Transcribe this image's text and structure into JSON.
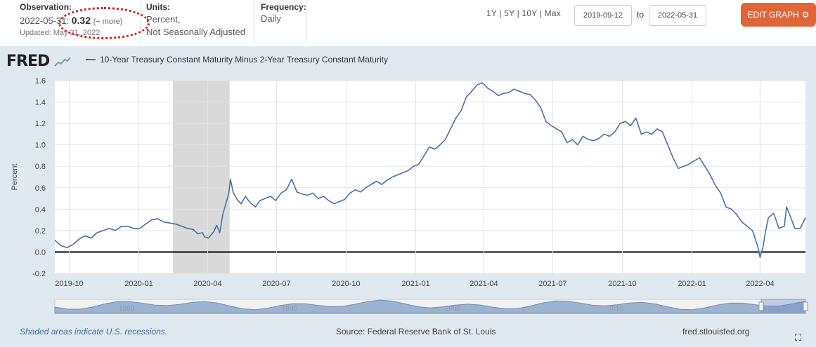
{
  "observation": {
    "header": "Observation:",
    "date": "2022-05-31:",
    "value": "0.32",
    "more": "(+ more)",
    "updated": "Updated: May 31, 2022"
  },
  "units": {
    "header": "Units:",
    "line1": "Percent,",
    "line2": "Not Seasonally Adjusted"
  },
  "frequency": {
    "header": "Frequency:",
    "value": "Daily"
  },
  "ranges": [
    "1Y",
    "5Y",
    "10Y",
    "Max"
  ],
  "date_start": "2019-09-12",
  "date_end": "2022-05-31",
  "to_label": "to",
  "edit_button": "EDIT GRAPH",
  "logo": "FRED",
  "footer": {
    "shaded_note": "Shaded areas indicate U.S. recessions.",
    "source": "Source: Federal Reserve Bank of St. Louis",
    "site": "fred.stlouisfed.org"
  },
  "colors": {
    "line": "#4572a7",
    "recession": "#d9d9d9",
    "plot_bg": "#ffffff",
    "outer_bg": "#e1e9f0",
    "button": "#e0663a",
    "annotation": "#e01818"
  },
  "navigator_labels": [
    "1980",
    "1990",
    "2000",
    "2010",
    "2020"
  ],
  "chart_data": {
    "type": "line",
    "title": "",
    "ylabel": "Percent",
    "ylim": [
      -0.2,
      1.6
    ],
    "yticks": [
      "1.6",
      "1.4",
      "1.2",
      "1.0",
      "0.8",
      "0.6",
      "0.4",
      "0.2",
      "0.0",
      "-0.2"
    ],
    "ytick_values": [
      1.6,
      1.4,
      1.2,
      1.0,
      0.8,
      0.6,
      0.4,
      0.2,
      0.0,
      -0.2
    ],
    "xlim": [
      "2019-09-12",
      "2022-05-31"
    ],
    "xticks": [
      {
        "date": "2019-10-01",
        "label": "2019-10"
      },
      {
        "date": "2020-01-01",
        "label": "2020-01"
      },
      {
        "date": "2020-04-01",
        "label": "2020-04"
      },
      {
        "date": "2020-07-01",
        "label": "2020-07"
      },
      {
        "date": "2020-10-01",
        "label": "2020-10"
      },
      {
        "date": "2021-01-01",
        "label": "2021-01"
      },
      {
        "date": "2021-04-01",
        "label": "2021-04"
      },
      {
        "date": "2021-07-01",
        "label": "2021-07"
      },
      {
        "date": "2021-10-01",
        "label": "2021-10"
      },
      {
        "date": "2022-01-01",
        "label": "2022-01"
      },
      {
        "date": "2022-04-01",
        "label": "2022-04"
      }
    ],
    "recession": {
      "start": "2020-02-15",
      "end": "2020-04-30"
    },
    "grid": true,
    "series": [
      {
        "name": "10-Year Treasury Constant Maturity Minus 2-Year Treasury Constant Maturity",
        "points": [
          [
            "2019-09-12",
            0.11
          ],
          [
            "2019-09-20",
            0.06
          ],
          [
            "2019-09-28",
            0.04
          ],
          [
            "2019-10-06",
            0.07
          ],
          [
            "2019-10-14",
            0.12
          ],
          [
            "2019-10-22",
            0.15
          ],
          [
            "2019-10-30",
            0.13
          ],
          [
            "2019-11-07",
            0.18
          ],
          [
            "2019-11-15",
            0.2
          ],
          [
            "2019-11-23",
            0.22
          ],
          [
            "2019-12-01",
            0.2
          ],
          [
            "2019-12-09",
            0.24
          ],
          [
            "2019-12-17",
            0.24
          ],
          [
            "2019-12-25",
            0.22
          ],
          [
            "2020-01-02",
            0.22
          ],
          [
            "2020-01-10",
            0.26
          ],
          [
            "2020-01-18",
            0.3
          ],
          [
            "2020-01-26",
            0.31
          ],
          [
            "2020-02-03",
            0.28
          ],
          [
            "2020-02-11",
            0.27
          ],
          [
            "2020-02-19",
            0.26
          ],
          [
            "2020-02-27",
            0.24
          ],
          [
            "2020-03-05",
            0.22
          ],
          [
            "2020-03-13",
            0.21
          ],
          [
            "2020-03-19",
            0.17
          ],
          [
            "2020-03-25",
            0.18
          ],
          [
            "2020-03-28",
            0.14
          ],
          [
            "2020-04-02",
            0.13
          ],
          [
            "2020-04-09",
            0.19
          ],
          [
            "2020-04-13",
            0.25
          ],
          [
            "2020-04-17",
            0.18
          ],
          [
            "2020-04-21",
            0.35
          ],
          [
            "2020-04-25",
            0.45
          ],
          [
            "2020-04-29",
            0.55
          ],
          [
            "2020-05-01",
            0.68
          ],
          [
            "2020-05-05",
            0.55
          ],
          [
            "2020-05-11",
            0.48
          ],
          [
            "2020-05-15",
            0.45
          ],
          [
            "2020-05-21",
            0.52
          ],
          [
            "2020-05-27",
            0.46
          ],
          [
            "2020-06-03",
            0.42
          ],
          [
            "2020-06-09",
            0.48
          ],
          [
            "2020-06-16",
            0.5
          ],
          [
            "2020-06-23",
            0.52
          ],
          [
            "2020-06-30",
            0.48
          ],
          [
            "2020-07-07",
            0.55
          ],
          [
            "2020-07-14",
            0.58
          ],
          [
            "2020-07-21",
            0.68
          ],
          [
            "2020-07-28",
            0.56
          ],
          [
            "2020-08-04",
            0.54
          ],
          [
            "2020-08-11",
            0.53
          ],
          [
            "2020-08-18",
            0.55
          ],
          [
            "2020-08-25",
            0.5
          ],
          [
            "2020-09-01",
            0.52
          ],
          [
            "2020-09-08",
            0.48
          ],
          [
            "2020-09-15",
            0.45
          ],
          [
            "2020-09-22",
            0.47
          ],
          [
            "2020-09-29",
            0.49
          ],
          [
            "2020-10-06",
            0.55
          ],
          [
            "2020-10-13",
            0.58
          ],
          [
            "2020-10-20",
            0.56
          ],
          [
            "2020-10-27",
            0.6
          ],
          [
            "2020-11-03",
            0.63
          ],
          [
            "2020-11-10",
            0.66
          ],
          [
            "2020-11-17",
            0.63
          ],
          [
            "2020-11-24",
            0.67
          ],
          [
            "2020-12-01",
            0.7
          ],
          [
            "2020-12-08",
            0.72
          ],
          [
            "2020-12-15",
            0.74
          ],
          [
            "2020-12-22",
            0.76
          ],
          [
            "2020-12-29",
            0.8
          ],
          [
            "2021-01-05",
            0.82
          ],
          [
            "2021-01-12",
            0.9
          ],
          [
            "2021-01-19",
            0.98
          ],
          [
            "2021-01-26",
            0.96
          ],
          [
            "2021-02-02",
            1.0
          ],
          [
            "2021-02-09",
            1.05
          ],
          [
            "2021-02-16",
            1.15
          ],
          [
            "2021-02-23",
            1.25
          ],
          [
            "2021-03-02",
            1.32
          ],
          [
            "2021-03-09",
            1.45
          ],
          [
            "2021-03-16",
            1.5
          ],
          [
            "2021-03-23",
            1.56
          ],
          [
            "2021-03-30",
            1.58
          ],
          [
            "2021-04-06",
            1.53
          ],
          [
            "2021-04-13",
            1.5
          ],
          [
            "2021-04-20",
            1.46
          ],
          [
            "2021-04-27",
            1.48
          ],
          [
            "2021-05-04",
            1.49
          ],
          [
            "2021-05-11",
            1.52
          ],
          [
            "2021-05-18",
            1.5
          ],
          [
            "2021-05-25",
            1.48
          ],
          [
            "2021-06-01",
            1.47
          ],
          [
            "2021-06-08",
            1.42
          ],
          [
            "2021-06-15",
            1.35
          ],
          [
            "2021-06-22",
            1.22
          ],
          [
            "2021-06-29",
            1.18
          ],
          [
            "2021-07-06",
            1.15
          ],
          [
            "2021-07-13",
            1.12
          ],
          [
            "2021-07-20",
            1.02
          ],
          [
            "2021-07-27",
            1.05
          ],
          [
            "2021-08-03",
            1.0
          ],
          [
            "2021-08-10",
            1.08
          ],
          [
            "2021-08-17",
            1.05
          ],
          [
            "2021-08-24",
            1.04
          ],
          [
            "2021-08-31",
            1.06
          ],
          [
            "2021-09-07",
            1.1
          ],
          [
            "2021-09-14",
            1.08
          ],
          [
            "2021-09-21",
            1.12
          ],
          [
            "2021-09-28",
            1.2
          ],
          [
            "2021-10-05",
            1.22
          ],
          [
            "2021-10-12",
            1.18
          ],
          [
            "2021-10-19",
            1.25
          ],
          [
            "2021-10-26",
            1.1
          ],
          [
            "2021-11-02",
            1.12
          ],
          [
            "2021-11-09",
            1.1
          ],
          [
            "2021-11-16",
            1.15
          ],
          [
            "2021-11-23",
            1.12
          ],
          [
            "2021-11-30",
            1.0
          ],
          [
            "2021-12-07",
            0.88
          ],
          [
            "2021-12-14",
            0.78
          ],
          [
            "2021-12-21",
            0.8
          ],
          [
            "2021-12-28",
            0.82
          ],
          [
            "2022-01-04",
            0.85
          ],
          [
            "2022-01-11",
            0.88
          ],
          [
            "2022-01-18",
            0.8
          ],
          [
            "2022-01-25",
            0.72
          ],
          [
            "2022-02-01",
            0.62
          ],
          [
            "2022-02-08",
            0.55
          ],
          [
            "2022-02-15",
            0.42
          ],
          [
            "2022-02-22",
            0.4
          ],
          [
            "2022-03-01",
            0.35
          ],
          [
            "2022-03-08",
            0.28
          ],
          [
            "2022-03-15",
            0.24
          ],
          [
            "2022-03-22",
            0.2
          ],
          [
            "2022-03-29",
            0.05
          ],
          [
            "2022-04-01",
            -0.05
          ],
          [
            "2022-04-05",
            0.05
          ],
          [
            "2022-04-08",
            0.18
          ],
          [
            "2022-04-12",
            0.32
          ],
          [
            "2022-04-19",
            0.36
          ],
          [
            "2022-04-26",
            0.22
          ],
          [
            "2022-05-03",
            0.24
          ],
          [
            "2022-05-06",
            0.42
          ],
          [
            "2022-05-10",
            0.35
          ],
          [
            "2022-05-17",
            0.22
          ],
          [
            "2022-05-24",
            0.22
          ],
          [
            "2022-05-31",
            0.32
          ]
        ]
      }
    ]
  }
}
